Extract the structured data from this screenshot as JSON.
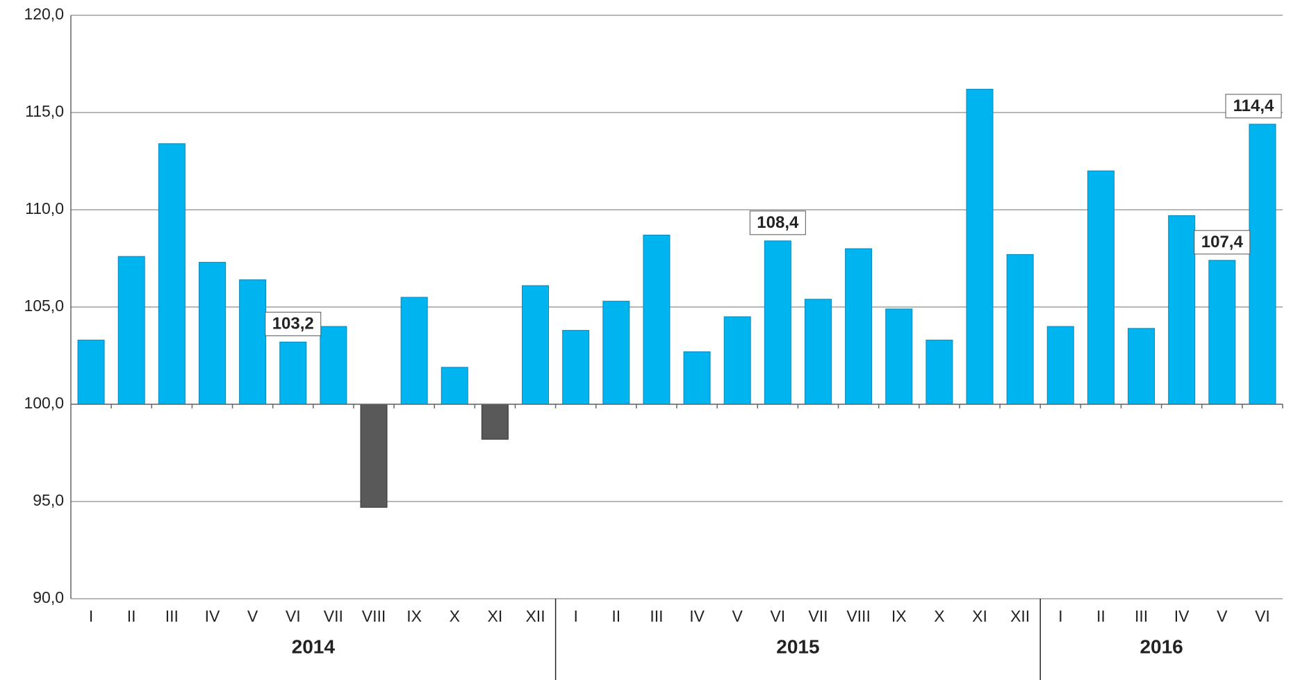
{
  "chart_data": {
    "type": "bar",
    "groups": [
      {
        "name": "2014",
        "categories": [
          "I",
          "II",
          "III",
          "IV",
          "V",
          "VI",
          "VII",
          "VIII",
          "IX",
          "X",
          "XI",
          "XII"
        ]
      },
      {
        "name": "2015",
        "categories": [
          "I",
          "II",
          "III",
          "IV",
          "V",
          "VI",
          "VII",
          "VIII",
          "IX",
          "X",
          "XI",
          "XII"
        ]
      },
      {
        "name": "2016",
        "categories": [
          "I",
          "II",
          "III",
          "IV",
          "V",
          "VI"
        ]
      }
    ],
    "values": [
      103.3,
      107.6,
      113.4,
      107.3,
      106.4,
      103.2,
      104.0,
      94.7,
      105.5,
      101.9,
      98.2,
      106.1,
      103.8,
      105.3,
      108.7,
      102.7,
      104.5,
      108.4,
      105.4,
      108.0,
      104.9,
      103.3,
      116.2,
      107.7,
      104.0,
      112.0,
      103.9,
      109.7,
      107.4,
      114.4
    ],
    "value_labels": [
      null,
      null,
      null,
      null,
      null,
      "103,2",
      null,
      null,
      null,
      null,
      null,
      null,
      null,
      null,
      null,
      null,
      null,
      "108,4",
      null,
      null,
      null,
      null,
      null,
      null,
      null,
      null,
      null,
      null,
      "107,4",
      "114,4"
    ],
    "color": "#00b4ef",
    "negative_color": "#595959",
    "baseline": 100,
    "ylim": [
      90,
      120
    ],
    "yticks": [
      {
        "value": 90,
        "label": "90,0"
      },
      {
        "value": 95,
        "label": "95,0"
      },
      {
        "value": 100,
        "label": "100,0"
      },
      {
        "value": 105,
        "label": "105,0"
      },
      {
        "value": 110,
        "label": "110,0"
      },
      {
        "value": 115,
        "label": "115,0"
      },
      {
        "value": 120,
        "label": "120,0"
      }
    ],
    "grid": true
  }
}
